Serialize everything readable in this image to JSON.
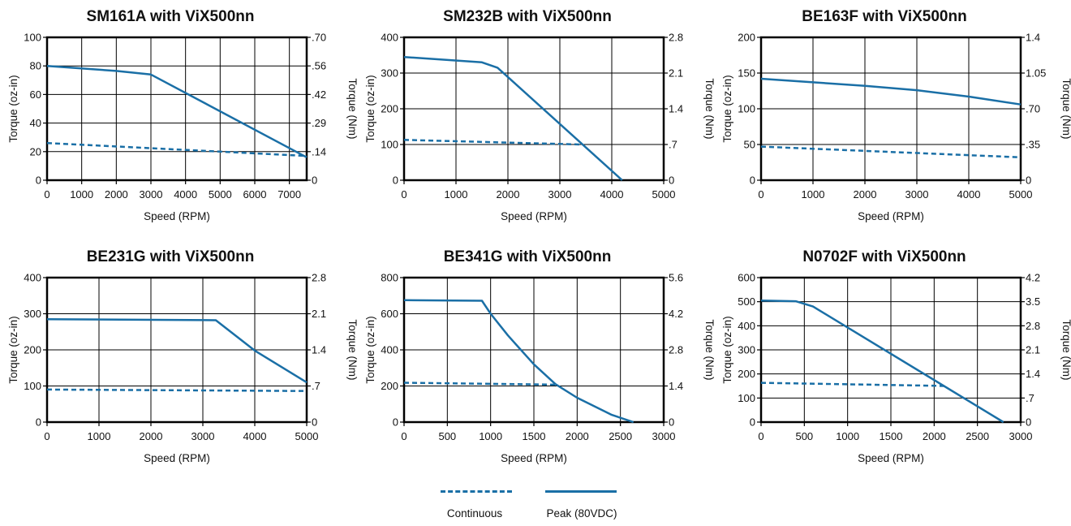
{
  "colors": {
    "line": "#1a6fa6",
    "axis": "#000000",
    "grid": "#000000"
  },
  "legend": {
    "continuous": "Continuous",
    "peak": "Peak (80VDC)"
  },
  "chart_data": [
    {
      "type": "line",
      "title": "SM161A with ViX500nn",
      "xlabel": "Speed (RPM)",
      "ylabel": "Torque (oz-in)",
      "y2label": "Torque (Nm)",
      "xlim": [
        0,
        7500
      ],
      "ylim": [
        0,
        100
      ],
      "xticks": [
        0,
        1000,
        2000,
        3000,
        4000,
        5000,
        6000,
        7000
      ],
      "xtick_labels": [
        "0",
        "1000",
        "2000",
        "3000",
        "4000",
        "5000",
        "6000",
        "7000"
      ],
      "grid_x": [
        0,
        1000,
        2000,
        3000,
        4000,
        5000,
        6000,
        7000,
        7500
      ],
      "yticks": [
        0,
        20,
        40,
        60,
        80,
        100
      ],
      "ytick_labels": [
        "0",
        "20",
        "40",
        "60",
        "80",
        "100"
      ],
      "y2tick_labels": [
        "0",
        ".14",
        ".29",
        ".42",
        ".56",
        ".70"
      ],
      "series": [
        {
          "name": "Continuous",
          "x": [
            0,
            7500
          ],
          "y": [
            26,
            17
          ]
        },
        {
          "name": "Peak (80VDC)",
          "x": [
            0,
            2000,
            3000,
            7500
          ],
          "y": [
            80,
            76.5,
            74,
            16
          ]
        }
      ]
    },
    {
      "type": "line",
      "title": "SM232B with ViX500nn",
      "xlabel": "Speed (RPM)",
      "ylabel": "Torque (oz-in)",
      "y2label": "Torque (Nm)",
      "xlim": [
        0,
        5000
      ],
      "ylim": [
        0,
        400
      ],
      "xticks": [
        0,
        1000,
        2000,
        3000,
        4000,
        5000
      ],
      "xtick_labels": [
        "0",
        "1000",
        "2000",
        "3000",
        "4000",
        "5000"
      ],
      "grid_x": [
        0,
        1000,
        2000,
        3000,
        4000,
        5000
      ],
      "yticks": [
        0,
        100,
        200,
        300,
        400
      ],
      "ytick_labels": [
        "0",
        "100",
        "200",
        "300",
        "400"
      ],
      "y2tick_labels": [
        "0",
        ".7",
        "1.4",
        "2.1",
        "2.8"
      ],
      "series": [
        {
          "name": "Continuous",
          "x": [
            0,
            3400
          ],
          "y": [
            113,
            100
          ]
        },
        {
          "name": "Peak (80VDC)",
          "x": [
            0,
            1500,
            1800,
            4200
          ],
          "y": [
            345,
            330,
            315,
            0
          ]
        }
      ]
    },
    {
      "type": "line",
      "title": "BE163F with ViX500nn",
      "xlabel": "Speed (RPM)",
      "ylabel": "Torque (oz-in)",
      "y2label": "Torque (Nm)",
      "xlim": [
        0,
        5000
      ],
      "ylim": [
        0,
        200
      ],
      "xticks": [
        0,
        1000,
        2000,
        3000,
        4000,
        5000
      ],
      "xtick_labels": [
        "0",
        "1000",
        "2000",
        "3000",
        "4000",
        "5000"
      ],
      "grid_x": [
        0,
        1000,
        2000,
        3000,
        4000,
        5000
      ],
      "yticks": [
        0,
        50,
        100,
        150,
        200
      ],
      "ytick_labels": [
        "0",
        "50",
        "100",
        "150",
        "200"
      ],
      "y2tick_labels": [
        "0",
        ".35",
        ".70",
        "1.05",
        "1.4"
      ],
      "series": [
        {
          "name": "Continuous",
          "x": [
            0,
            5000
          ],
          "y": [
            47,
            32
          ]
        },
        {
          "name": "Peak (80VDC)",
          "x": [
            0,
            1000,
            2000,
            3000,
            4000,
            5000
          ],
          "y": [
            142,
            137,
            132,
            126,
            117,
            106
          ]
        }
      ]
    },
    {
      "type": "line",
      "title": "BE231G with ViX500nn",
      "xlabel": "Speed (RPM)",
      "ylabel": "Torque (oz-in)",
      "y2label": "Torque (Nm)",
      "xlim": [
        0,
        5000
      ],
      "ylim": [
        0,
        400
      ],
      "xticks": [
        0,
        1000,
        2000,
        3000,
        4000,
        5000
      ],
      "xtick_labels": [
        "0",
        "1000",
        "2000",
        "3000",
        "4000",
        "5000"
      ],
      "grid_x": [
        0,
        1000,
        2000,
        3000,
        4000,
        5000
      ],
      "yticks": [
        0,
        100,
        200,
        300,
        400
      ],
      "ytick_labels": [
        "0",
        "100",
        "200",
        "300",
        "400"
      ],
      "y2tick_labels": [
        "0",
        ".7",
        "1.4",
        "2.1",
        "2.8"
      ],
      "series": [
        {
          "name": "Continuous",
          "x": [
            0,
            5000
          ],
          "y": [
            90,
            86
          ]
        },
        {
          "name": "Peak (80VDC)",
          "x": [
            0,
            3250,
            4000,
            5000
          ],
          "y": [
            285,
            282,
            198,
            110
          ]
        }
      ]
    },
    {
      "type": "line",
      "title": "BE341G with ViX500nn",
      "xlabel": "Speed (RPM)",
      "ylabel": "Torque (oz-in)",
      "y2label": "Torque (Nm)",
      "xlim": [
        0,
        3000
      ],
      "ylim": [
        0,
        800
      ],
      "xticks": [
        0,
        500,
        1000,
        1500,
        2000,
        2500,
        3000
      ],
      "xtick_labels": [
        "0",
        "500",
        "1000",
        "1500",
        "2000",
        "2500",
        "3000"
      ],
      "grid_x": [
        0,
        500,
        1000,
        1500,
        2000,
        2500,
        3000
      ],
      "yticks": [
        0,
        200,
        400,
        600,
        800
      ],
      "ytick_labels": [
        "0",
        "200",
        "400",
        "600",
        "800"
      ],
      "y2tick_labels": [
        "0",
        "1.4",
        "2.8",
        "4.2",
        "5.6"
      ],
      "series": [
        {
          "name": "Continuous",
          "x": [
            0,
            1750
          ],
          "y": [
            218,
            207
          ]
        },
        {
          "name": "Peak (80VDC)",
          "x": [
            0,
            900,
            1000,
            1200,
            1500,
            1750,
            2000,
            2400,
            2650
          ],
          "y": [
            675,
            672,
            600,
            480,
            320,
            210,
            135,
            40,
            0
          ]
        }
      ]
    },
    {
      "type": "line",
      "title": "N0702F with ViX500nn",
      "xlabel": "Speed (RPM)",
      "ylabel": "Torque (oz-in)",
      "y2label": "Torque (Nm)",
      "xlim": [
        0,
        3000
      ],
      "ylim": [
        0,
        600
      ],
      "xticks": [
        0,
        500,
        1000,
        1500,
        2000,
        2500,
        3000
      ],
      "xtick_labels": [
        "0",
        "500",
        "1000",
        "1500",
        "2000",
        "2500",
        "3000"
      ],
      "grid_x": [
        0,
        500,
        1000,
        1500,
        2000,
        2500,
        3000
      ],
      "yticks": [
        0,
        100,
        200,
        300,
        400,
        500,
        600
      ],
      "ytick_labels": [
        "0",
        "100",
        "200",
        "300",
        "400",
        "500",
        "600"
      ],
      "y2tick_labels": [
        "0",
        ".7",
        "1.4",
        "2.1",
        "2.8",
        "3.5",
        "4.2"
      ],
      "series": [
        {
          "name": "Continuous",
          "x": [
            0,
            2150
          ],
          "y": [
            163,
            150
          ]
        },
        {
          "name": "Peak (80VDC)",
          "x": [
            0,
            400,
            600,
            2800
          ],
          "y": [
            505,
            502,
            480,
            0
          ]
        }
      ]
    }
  ]
}
